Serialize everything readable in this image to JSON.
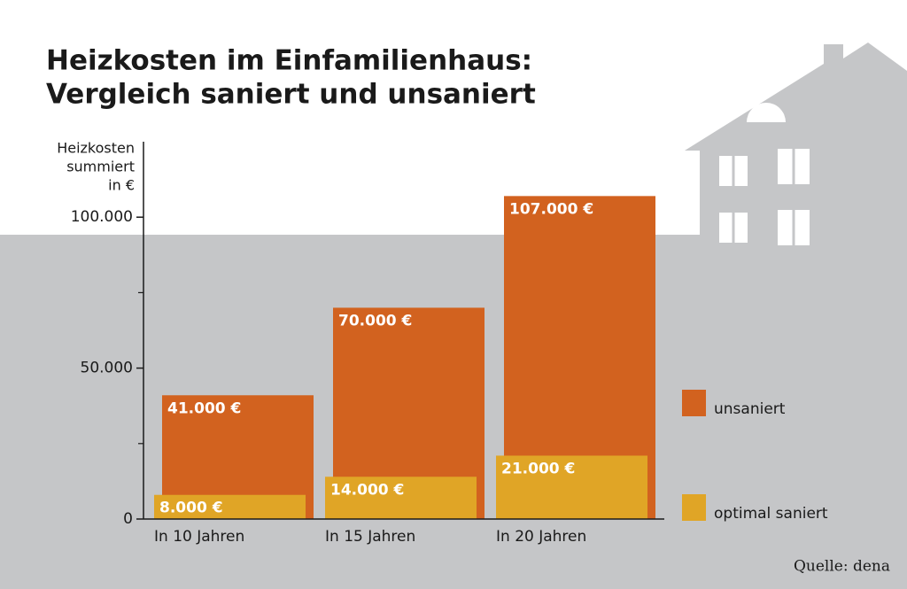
{
  "chart_data": {
    "type": "overlap-bar",
    "title": [
      "Heizkosten im Einfamilienhaus:",
      "Vergleich saniert und unsaniert"
    ],
    "ylabel": [
      "Heizkosten",
      "summiert",
      "in €"
    ],
    "categories": [
      "In 10 Jahren",
      "In 15 Jahren",
      "In 20 Jahren"
    ],
    "series": [
      {
        "name": "unsaniert",
        "color": "#d2621f",
        "values": [
          41000,
          70000,
          107000
        ],
        "value_labels": [
          "41.000 €",
          "70.000 €",
          "107.000 €"
        ]
      },
      {
        "name": "optimal saniert",
        "color": "#e0a526",
        "values": [
          8000,
          14000,
          21000
        ],
        "value_labels": [
          "8.000 €",
          "14.000 €",
          "21.000 €"
        ]
      }
    ],
    "ylim": [
      0,
      125000
    ],
    "yticks": [
      0,
      {
        "value": 50000,
        "label": "50.000"
      },
      {
        "value": 100000,
        "label": "100.000"
      }
    ],
    "yticks_minor": [
      25000,
      75000
    ],
    "source": "Quelle: dena"
  }
}
